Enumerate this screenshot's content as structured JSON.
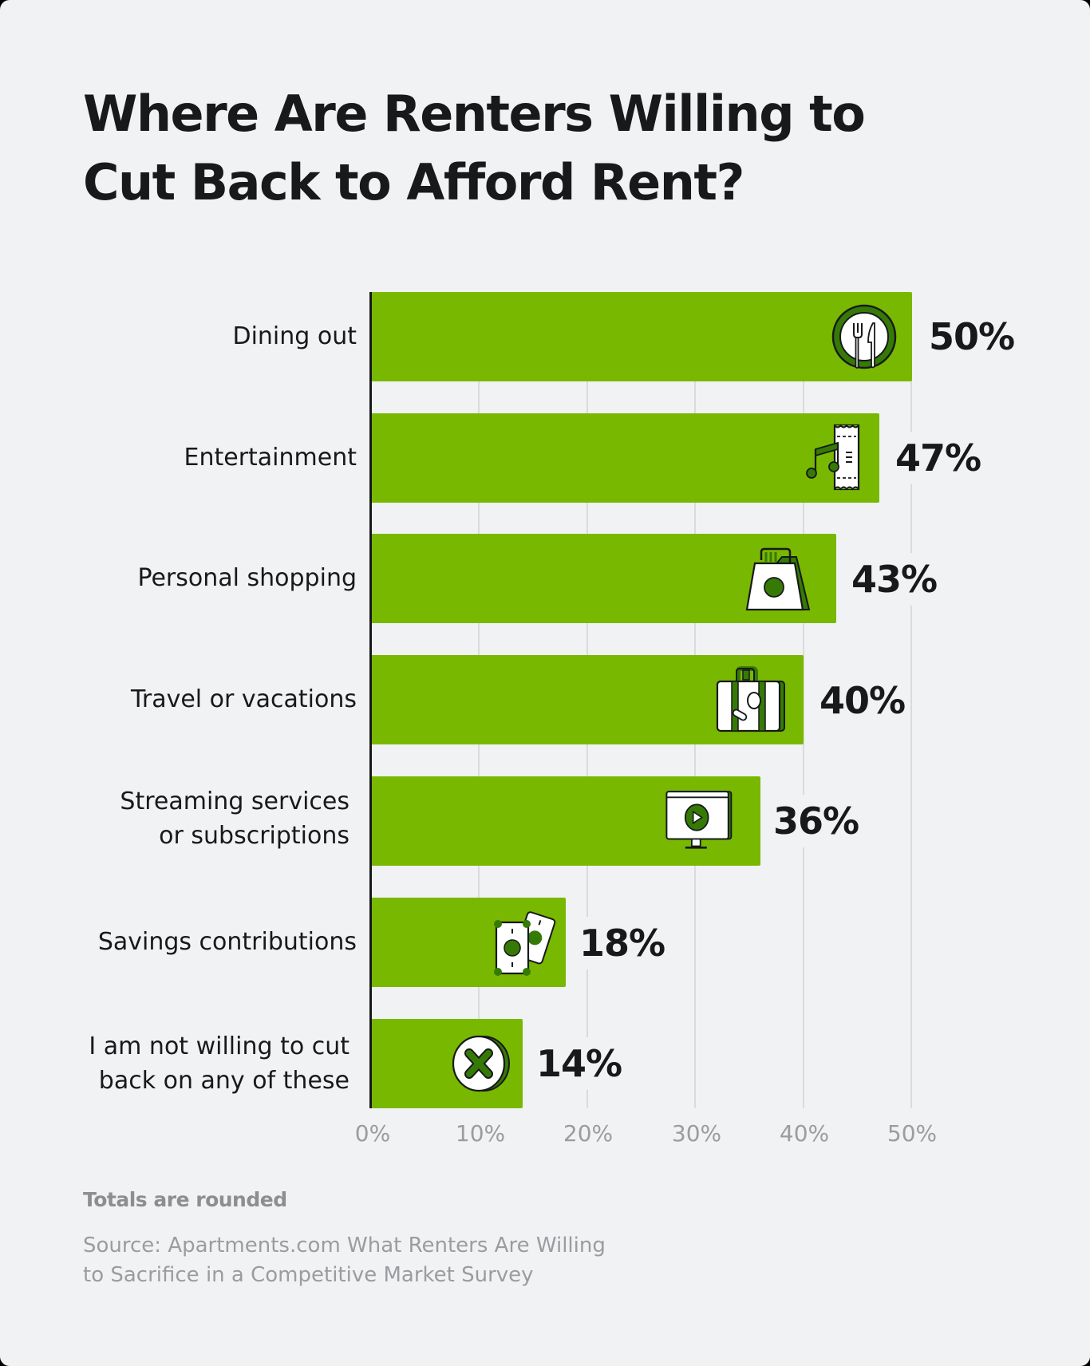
{
  "title": "Where Are Renters Willing to\nCut Back to Afford Rent?",
  "note": "Totals are rounded",
  "source": "Source: Apartments.com What Renters Are Willing\nto Sacrifice in a Competitive Market Survey",
  "colors": {
    "bar": "#78b800",
    "icon_dark_green": "#367a06",
    "background": "#f1f2f4",
    "text": "#17191b",
    "muted": "#9a9c9f",
    "gridline": "#d9dbde"
  },
  "axis": {
    "ticks": [
      "0%",
      "10%",
      "20%",
      "30%",
      "40%",
      "50%"
    ]
  },
  "bars": [
    {
      "label": "Dining out",
      "value": 50,
      "value_label": "50%",
      "icon": "plate-cutlery-icon"
    },
    {
      "label": "Entertainment",
      "value": 47,
      "value_label": "47%",
      "icon": "music-ticket-icon"
    },
    {
      "label": "Personal shopping",
      "value": 43,
      "value_label": "43%",
      "icon": "shopping-bag-icon"
    },
    {
      "label": "Travel or vacations",
      "value": 40,
      "value_label": "40%",
      "icon": "suitcase-icon"
    },
    {
      "label": "Streaming services\nor subscriptions",
      "value": 36,
      "value_label": "36%",
      "icon": "streaming-monitor-icon"
    },
    {
      "label": "Savings contributions",
      "value": 18,
      "value_label": "18%",
      "icon": "money-bills-icon"
    },
    {
      "label": "I am not willing to cut\nback on any of these",
      "value": 14,
      "value_label": "14%",
      "icon": "x-coin-icon"
    }
  ],
  "chart_data": {
    "type": "bar",
    "orientation": "horizontal",
    "title": "Where Are Renters Willing to Cut Back to Afford Rent?",
    "categories": [
      "Dining out",
      "Entertainment",
      "Personal shopping",
      "Travel or vacations",
      "Streaming services or subscriptions",
      "Savings contributions",
      "I am not willing to cut back on any of these"
    ],
    "values": [
      50,
      47,
      43,
      40,
      36,
      18,
      14
    ],
    "value_labels": [
      "50%",
      "47%",
      "43%",
      "40%",
      "36%",
      "18%",
      "14%"
    ],
    "xlabel": "",
    "ylabel": "",
    "xlim": [
      0,
      50
    ],
    "x_ticks": [
      "0%",
      "10%",
      "20%",
      "30%",
      "40%",
      "50%"
    ],
    "grid": "vertical gridlines at each 10%",
    "legend": "none",
    "note": "Totals are rounded",
    "source": "Source: Apartments.com What Renters Are Willing to Sacrifice in a Competitive Market Survey"
  }
}
